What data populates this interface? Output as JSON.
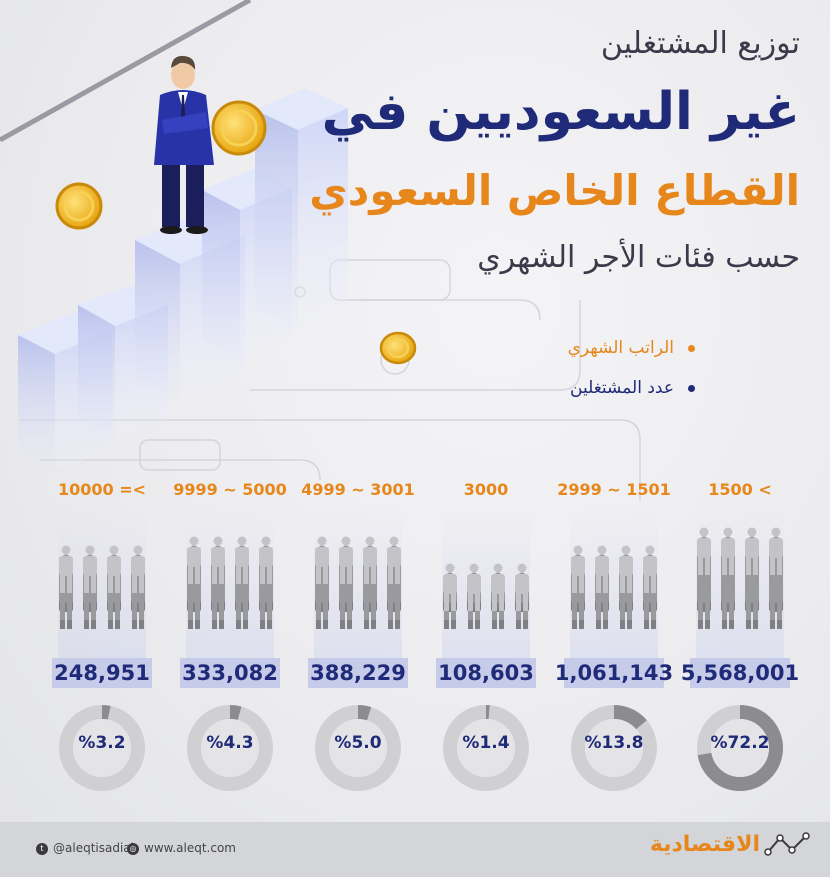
{
  "title": {
    "line1": "توزيع المشتغلين",
    "line2": "غير السعوديين في",
    "line3": "القطاع الخاص السعودي",
    "line4": "حسب فئات الأجر الشهري"
  },
  "legend": {
    "salary": "الراتب الشهري",
    "workers": "عدد المشتغلين"
  },
  "colors": {
    "navy": "#1f2a78",
    "orange": "#e6861b",
    "donut_track": "#d0d0d3",
    "donut_fill": "#8c8c90",
    "donut_center": "#e4e4e7"
  },
  "chart_data": {
    "type": "bar",
    "categories": [
      "< 1500",
      "2999 ~ 1501",
      "3000",
      "4999 ~ 3001",
      "9999 ~ 5000",
      "10000 =<"
    ],
    "series": [
      {
        "name": "عدد المشتغلين",
        "values": [
          5568001,
          1061143,
          108603,
          388229,
          333082,
          248951
        ]
      }
    ],
    "percent": [
      72.2,
      13.8,
      1.4,
      5.0,
      4.3,
      3.2
    ],
    "range_labels": [
      "1500 <",
      "2999 ~ 1501",
      "3000",
      "4999 ~ 3001",
      "9999 ~ 5000",
      "10000 =<"
    ],
    "count_labels": [
      "5,568,001",
      "1,061,143",
      "108,603",
      "388,229",
      "333,082",
      "248,951"
    ],
    "percent_labels": [
      "%72.2",
      "%13.8",
      "%1.4",
      "%5.0",
      "%4.3",
      "%3.2"
    ],
    "people_rows": [
      7,
      5,
      3,
      6,
      6,
      5
    ]
  },
  "footer": {
    "twitter": "@aleqtisadiah",
    "website": "www.aleqt.com",
    "brand": "الاقتصادية"
  }
}
